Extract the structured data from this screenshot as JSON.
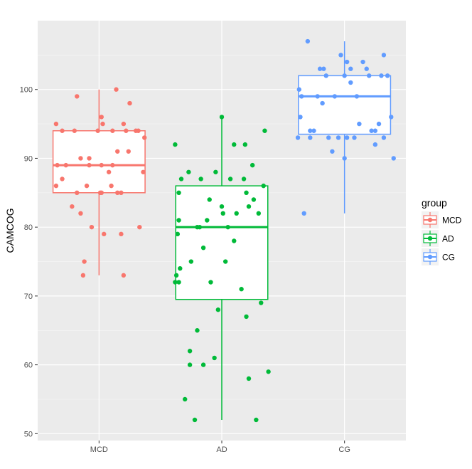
{
  "chart_data": {
    "type": "boxplot",
    "xlabel": "",
    "ylabel": "CAMCOG",
    "ylim": [
      49,
      110
    ],
    "yticks": [
      50,
      60,
      70,
      80,
      90,
      100
    ],
    "categories": [
      "MCD",
      "AD",
      "CG"
    ],
    "grid": true,
    "legend": {
      "title": "group",
      "position": "right",
      "entries": [
        "MCD",
        "AD",
        "CG"
      ]
    },
    "colors": {
      "MCD": "#F8766D",
      "AD": "#00BA38",
      "CG": "#619CFF"
    },
    "series": [
      {
        "name": "MCD",
        "box": {
          "min": 73,
          "q1": 85,
          "median": 89,
          "q3": 94,
          "max": 100
        },
        "points": [
          [
            -0.35,
            95
          ],
          [
            -0.3,
            94
          ],
          [
            -0.35,
            86
          ],
          [
            -0.34,
            89
          ],
          [
            -0.27,
            89
          ],
          [
            -0.2,
            94
          ],
          [
            -0.22,
            83
          ],
          [
            -0.18,
            99
          ],
          [
            -0.18,
            85
          ],
          [
            -0.15,
            82
          ],
          [
            -0.13,
            73
          ],
          [
            -0.1,
            86
          ],
          [
            -0.15,
            90
          ],
          [
            -0.08,
            90
          ],
          [
            -0.08,
            89
          ],
          [
            -0.06,
            80
          ],
          [
            -0.12,
            75
          ],
          [
            -0.01,
            94
          ],
          [
            0.01,
            85
          ],
          [
            0.02,
            96
          ],
          [
            0.03,
            95
          ],
          [
            0.02,
            89
          ],
          [
            0.04,
            79
          ],
          [
            0.08,
            88
          ],
          [
            0.11,
            94
          ],
          [
            0.11,
            89
          ],
          [
            0.15,
            85
          ],
          [
            0.15,
            91
          ],
          [
            0.18,
            85
          ],
          [
            0.14,
            100
          ],
          [
            0.18,
            79
          ],
          [
            0.2,
            95
          ],
          [
            0.22,
            94
          ],
          [
            0.24,
            91
          ],
          [
            0.25,
            98
          ],
          [
            0.3,
            94
          ],
          [
            0.32,
            94
          ],
          [
            0.33,
            80
          ],
          [
            0.37,
            93
          ],
          [
            0.36,
            88
          ],
          [
            0.2,
            73
          ],
          [
            0.02,
            85
          ],
          [
            -0.3,
            87
          ],
          [
            0.1,
            86
          ]
        ]
      },
      {
        "name": "AD",
        "box": {
          "min": 52,
          "q1": 69.5,
          "median": 80,
          "q3": 86,
          "max": 96
        },
        "points": [
          [
            -0.38,
            92
          ],
          [
            -0.37,
            73
          ],
          [
            -0.38,
            72
          ],
          [
            -0.35,
            85
          ],
          [
            -0.35,
            81
          ],
          [
            -0.35,
            72
          ],
          [
            -0.33,
            87
          ],
          [
            -0.34,
            74
          ],
          [
            -0.3,
            55
          ],
          [
            -0.27,
            88
          ],
          [
            -0.26,
            62
          ],
          [
            -0.26,
            60
          ],
          [
            -0.25,
            75
          ],
          [
            -0.22,
            52
          ],
          [
            -0.2,
            80
          ],
          [
            -0.2,
            65
          ],
          [
            -0.18,
            80
          ],
          [
            -0.17,
            87
          ],
          [
            -0.15,
            60
          ],
          [
            -0.15,
            77
          ],
          [
            -0.12,
            81
          ],
          [
            -0.1,
            84
          ],
          [
            -0.09,
            72
          ],
          [
            -0.06,
            61
          ],
          [
            -0.05,
            88
          ],
          [
            -0.03,
            68
          ],
          [
            0.0,
            96
          ],
          [
            0.0,
            83
          ],
          [
            0.01,
            82
          ],
          [
            0.03,
            75
          ],
          [
            0.05,
            80
          ],
          [
            0.07,
            87
          ],
          [
            0.1,
            92
          ],
          [
            0.1,
            78
          ],
          [
            0.12,
            82
          ],
          [
            0.16,
            71
          ],
          [
            0.18,
            87
          ],
          [
            0.19,
            92
          ],
          [
            0.2,
            67
          ],
          [
            0.2,
            85
          ],
          [
            0.22,
            83
          ],
          [
            0.22,
            58
          ],
          [
            0.25,
            89
          ],
          [
            0.26,
            84
          ],
          [
            0.28,
            52
          ],
          [
            0.3,
            82
          ],
          [
            0.32,
            69
          ],
          [
            0.34,
            86
          ],
          [
            0.35,
            94
          ],
          [
            0.38,
            59
          ],
          [
            -0.36,
            79
          ]
        ]
      },
      {
        "name": "CG",
        "box": {
          "min": 82,
          "q1": 93.5,
          "median": 99,
          "q3": 102,
          "max": 107
        },
        "points": [
          [
            -0.37,
            100
          ],
          [
            -0.36,
            96
          ],
          [
            -0.35,
            99
          ],
          [
            -0.33,
            82
          ],
          [
            -0.3,
            107
          ],
          [
            -0.28,
            93
          ],
          [
            -0.28,
            94
          ],
          [
            -0.22,
            99
          ],
          [
            -0.2,
            103
          ],
          [
            -0.18,
            98
          ],
          [
            -0.17,
            103
          ],
          [
            -0.15,
            102
          ],
          [
            -0.13,
            93
          ],
          [
            -0.1,
            91
          ],
          [
            -0.08,
            99
          ],
          [
            -0.05,
            93
          ],
          [
            -0.03,
            105
          ],
          [
            0.0,
            90
          ],
          [
            0.0,
            102
          ],
          [
            0.02,
            93
          ],
          [
            0.05,
            101
          ],
          [
            0.05,
            103
          ],
          [
            0.08,
            93
          ],
          [
            0.1,
            99
          ],
          [
            0.12,
            95
          ],
          [
            0.15,
            104
          ],
          [
            0.18,
            103
          ],
          [
            0.2,
            102
          ],
          [
            0.22,
            94
          ],
          [
            0.25,
            92
          ],
          [
            0.25,
            94
          ],
          [
            0.28,
            95
          ],
          [
            0.3,
            102
          ],
          [
            0.32,
            105
          ],
          [
            0.32,
            93
          ],
          [
            0.35,
            102
          ],
          [
            0.38,
            96
          ],
          [
            0.4,
            90
          ],
          [
            -0.38,
            93
          ],
          [
            -0.25,
            94
          ],
          [
            0.02,
            104
          ]
        ]
      }
    ]
  }
}
